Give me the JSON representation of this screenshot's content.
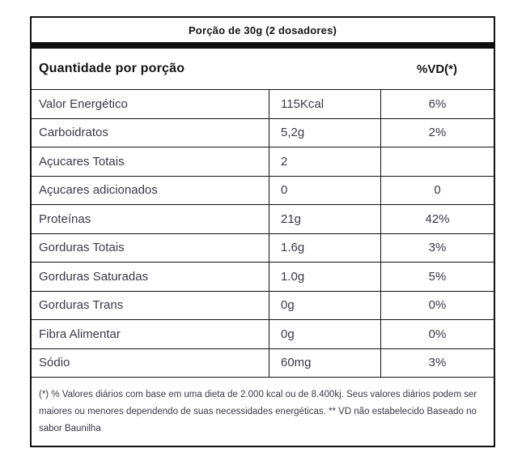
{
  "header": {
    "portion": "Porção de 30g (2 dosadores)",
    "quantity_label": "Quantidade por porção",
    "vd_label": "%VD(*)"
  },
  "table": {
    "rows": [
      {
        "label": "Valor Energético",
        "amount": "115Kcal",
        "vd": "6%"
      },
      {
        "label": "Carboidratos",
        "amount": "5,2g",
        "vd": "2%"
      },
      {
        "label": "Açucares Totais",
        "amount": "2",
        "vd": ""
      },
      {
        "label": "Açucares adicionados",
        "amount": "0",
        "vd": "0"
      },
      {
        "label": "Proteínas",
        "amount": "21g",
        "vd": "42%"
      },
      {
        "label": "Gorduras Totais",
        "amount": "1.6g",
        "vd": "3%"
      },
      {
        "label": "Gorduras Saturadas",
        "amount": "1.0g",
        "vd": "5%"
      },
      {
        "label": "Gorduras Trans",
        "amount": "0g",
        "vd": "0%"
      },
      {
        "label": "Fibra Alimentar",
        "amount": "0g",
        "vd": "0%"
      },
      {
        "label": "Sódio",
        "amount": "60mg",
        "vd": "3%"
      }
    ]
  },
  "footnote": "(*) % Valores diários com base em uma dieta de 2.000 kcal ou de 8.400kj. Seus valores diários podem ser maiores ou menores dependendo de suas necessidades energéticas. ** VD não estabelecido Baseado no sabor Baunilha",
  "colors": {
    "border": "#121212",
    "bar": "#0d0d0d",
    "heading_text": "#151515",
    "body_text": "#3b3947",
    "background": "#ffffff"
  }
}
